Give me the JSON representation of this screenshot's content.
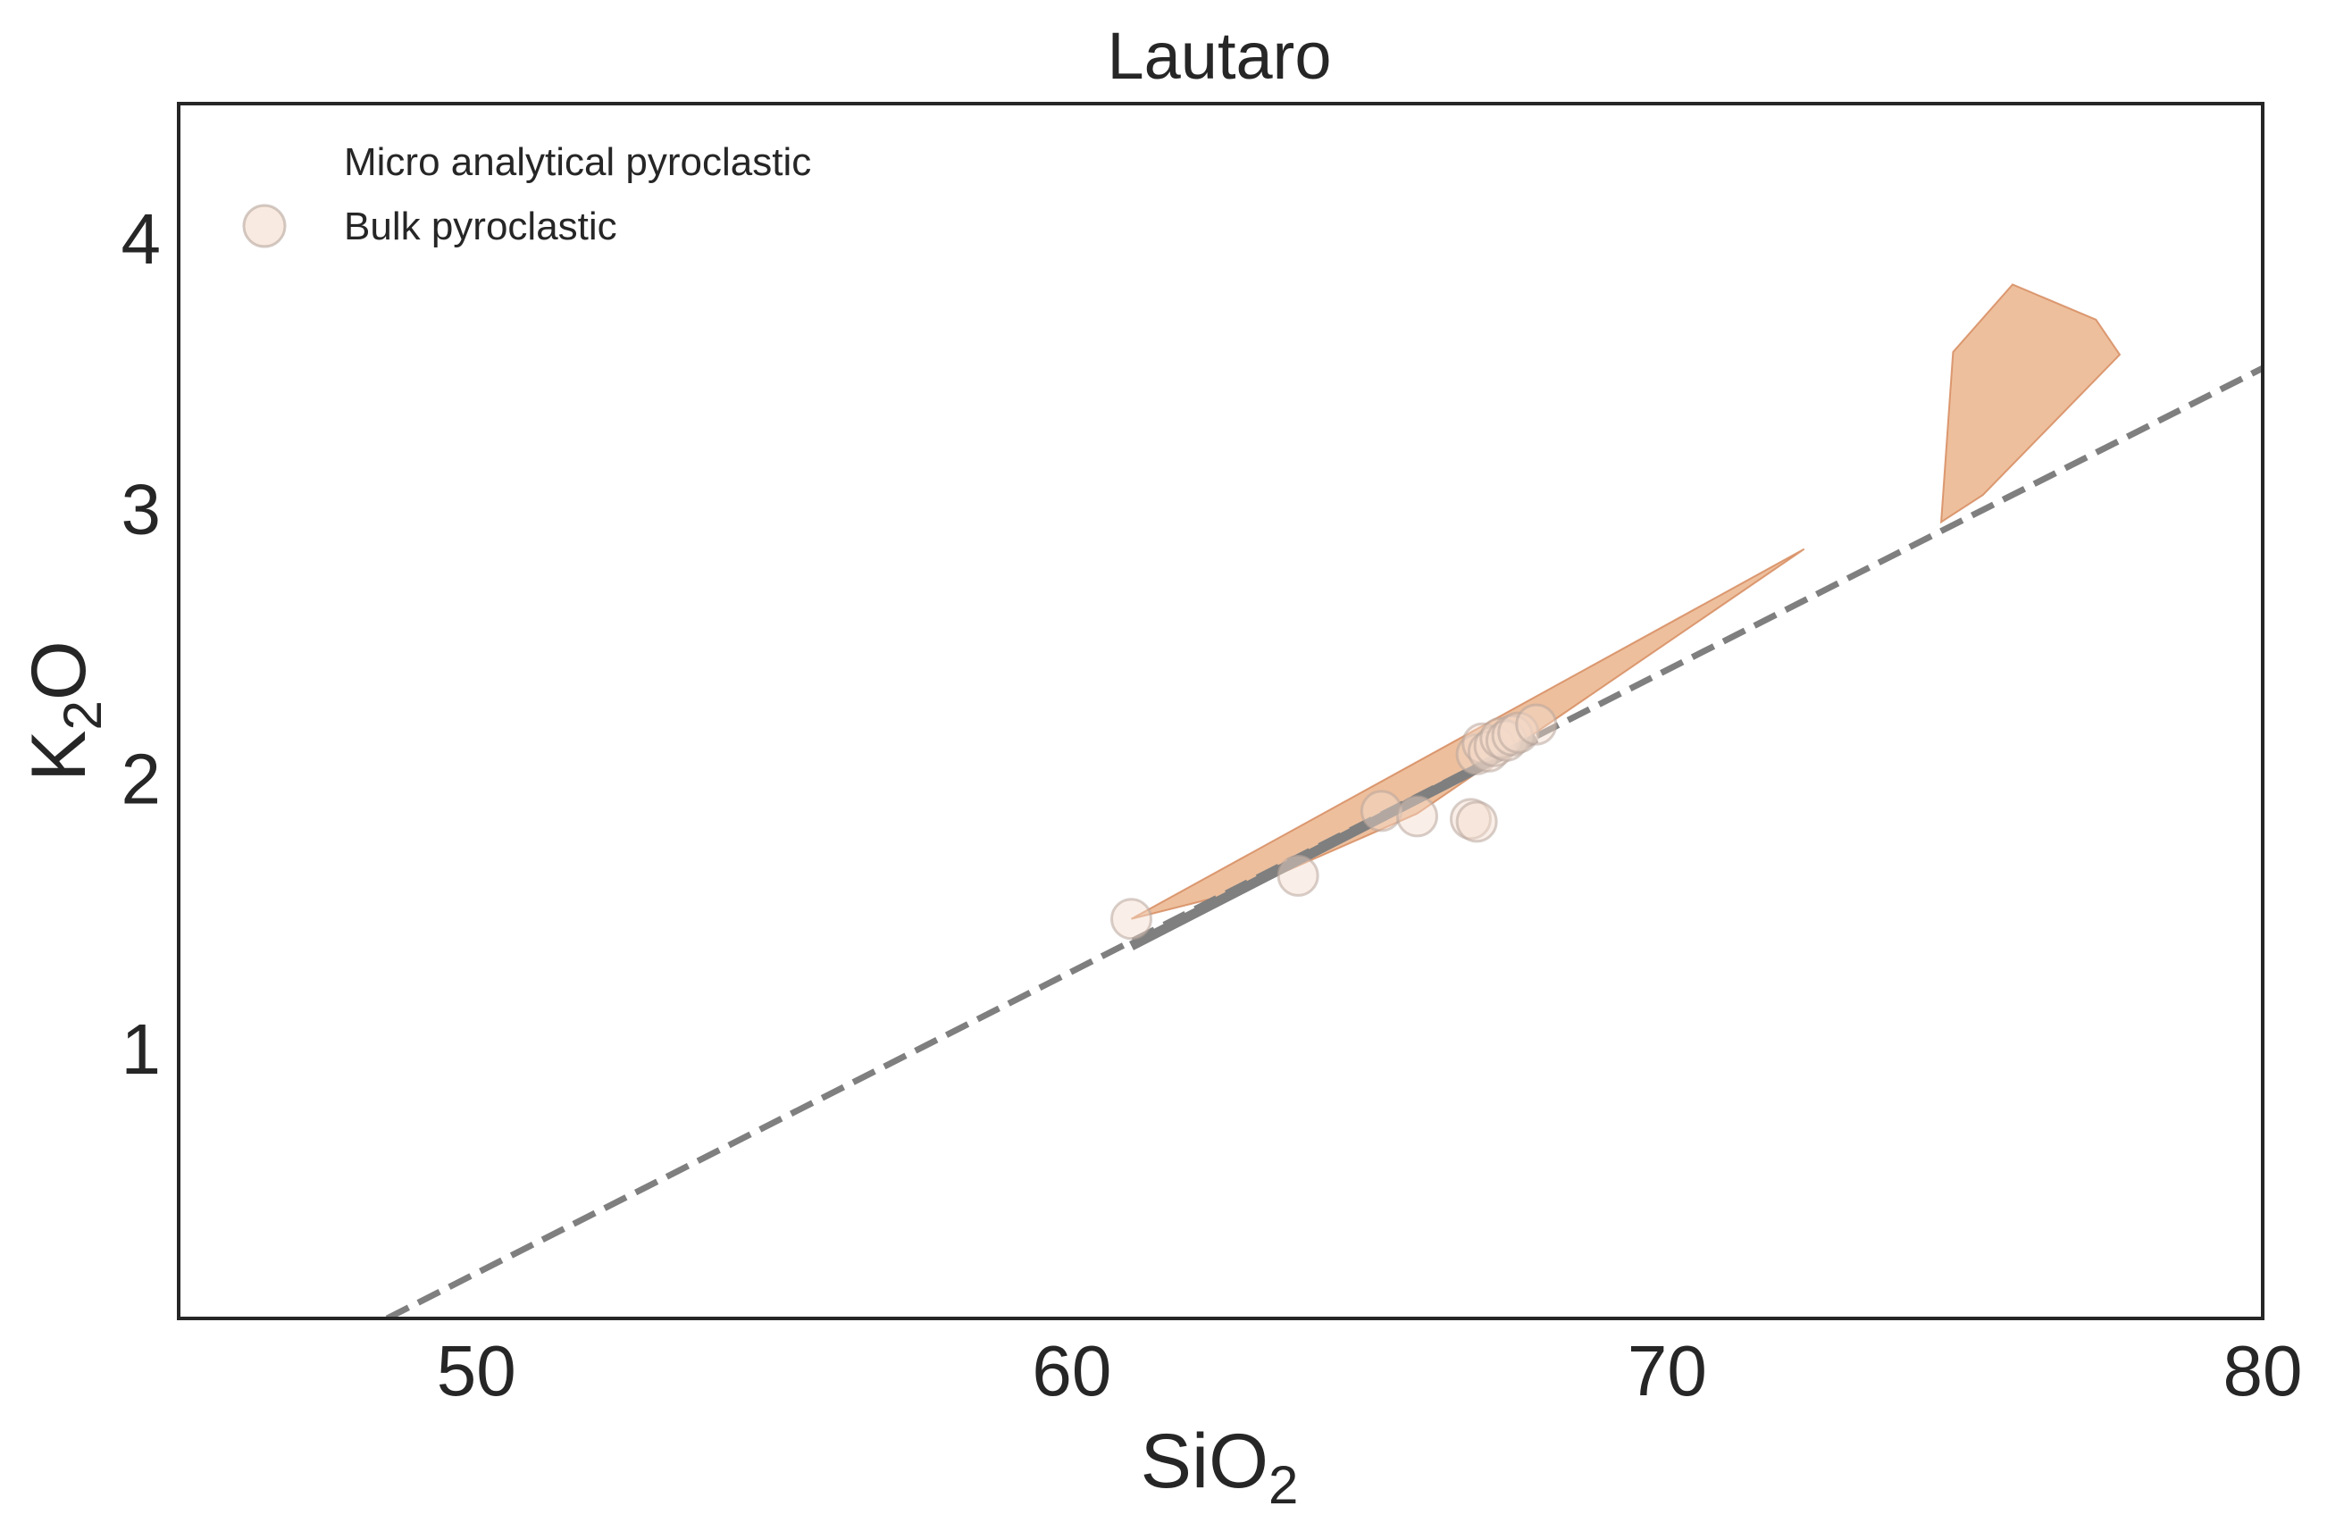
{
  "chart_data": {
    "type": "scatter",
    "title": "Lautaro",
    "xlabel": {
      "base": "SiO",
      "sub": "2"
    },
    "ylabel": {
      "pre": "K",
      "sub": "2",
      "post": "O"
    },
    "xlim": [
      45,
      80
    ],
    "ylim": [
      0,
      4.5
    ],
    "xticks": [
      50,
      60,
      70,
      80
    ],
    "yticks": [
      1,
      2,
      3,
      4
    ],
    "grid": false,
    "legend": {
      "placement": "top-left",
      "entries": [
        {
          "label": "Micro analytical pyroclastic",
          "marker": "none"
        },
        {
          "label": "Bulk pyroclastic",
          "marker": "circle"
        }
      ]
    },
    "colors": {
      "polygon_fill": "#e39c69",
      "polygon_edge": "#d4875a",
      "marker_face": "#f4dccb",
      "marker_edge": "#b8a69c",
      "line": "#7f7f7f",
      "axes": "#262626"
    },
    "polygons": [
      {
        "name": "Micro analytical pyroclastic",
        "points": [
          [
            61.0,
            1.48
          ],
          [
            72.3,
            2.85
          ],
          [
            65.8,
            1.87
          ],
          [
            62.8,
            1.58
          ]
        ]
      },
      {
        "name": "Micro analytical pyroclastic",
        "points": [
          [
            74.6,
            2.95
          ],
          [
            74.8,
            3.58
          ],
          [
            75.8,
            3.83
          ],
          [
            77.2,
            3.7
          ],
          [
            77.6,
            3.57
          ],
          [
            75.3,
            3.05
          ]
        ]
      }
    ],
    "series": [
      {
        "name": "Bulk pyroclastic",
        "type": "scatter",
        "points": [
          [
            61.0,
            1.48
          ],
          [
            63.8,
            1.64
          ],
          [
            65.2,
            1.88
          ],
          [
            65.8,
            1.86
          ],
          [
            66.7,
            1.85
          ],
          [
            66.8,
            1.84
          ],
          [
            66.8,
            2.09
          ],
          [
            66.9,
            2.13
          ],
          [
            67.0,
            2.1
          ],
          [
            67.1,
            2.12
          ],
          [
            67.2,
            2.15
          ],
          [
            67.3,
            2.14
          ],
          [
            67.4,
            2.16
          ],
          [
            67.5,
            2.17
          ],
          [
            67.8,
            2.2
          ]
        ]
      }
    ],
    "trend_lines": [
      {
        "style": "solid",
        "points": [
          [
            61.0,
            1.38
          ],
          [
            67.8,
            2.15
          ]
        ]
      },
      {
        "style": "dashed",
        "points": [
          [
            48.5,
            0.0
          ],
          [
            80.0,
            3.52
          ]
        ]
      }
    ]
  }
}
